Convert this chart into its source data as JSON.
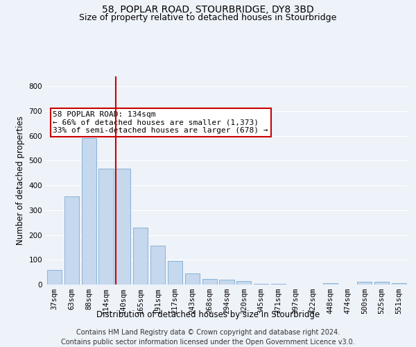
{
  "title_line1": "58, POPLAR ROAD, STOURBRIDGE, DY8 3BD",
  "title_line2": "Size of property relative to detached houses in Stourbridge",
  "xlabel": "Distribution of detached houses by size in Stourbridge",
  "ylabel": "Number of detached properties",
  "categories": [
    "37sqm",
    "63sqm",
    "88sqm",
    "114sqm",
    "140sqm",
    "165sqm",
    "191sqm",
    "217sqm",
    "243sqm",
    "268sqm",
    "294sqm",
    "320sqm",
    "345sqm",
    "371sqm",
    "397sqm",
    "422sqm",
    "448sqm",
    "474sqm",
    "500sqm",
    "525sqm",
    "551sqm"
  ],
  "values": [
    58,
    357,
    590,
    467,
    467,
    231,
    157,
    95,
    46,
    23,
    20,
    15,
    3,
    2,
    1,
    1,
    7,
    1,
    10,
    10,
    7
  ],
  "bar_color": "#c5d8ed",
  "bar_edge_color": "#7aadd4",
  "vline_index": 4,
  "vline_color": "#cc0000",
  "annotation_text": "58 POPLAR ROAD: 134sqm\n← 66% of detached houses are smaller (1,373)\n33% of semi-detached houses are larger (678) →",
  "annotation_box_color": "#ffffff",
  "annotation_box_edge": "#cc0000",
  "ylim": [
    0,
    840
  ],
  "yticks": [
    0,
    100,
    200,
    300,
    400,
    500,
    600,
    700,
    800
  ],
  "footer_line1": "Contains HM Land Registry data © Crown copyright and database right 2024.",
  "footer_line2": "Contains public sector information licensed under the Open Government Licence v3.0.",
  "background_color": "#eef2f9",
  "grid_color": "#ffffff",
  "title_fontsize": 10,
  "subtitle_fontsize": 9,
  "axis_label_fontsize": 8.5,
  "tick_fontsize": 7.5,
  "annotation_fontsize": 8,
  "footer_fontsize": 7
}
